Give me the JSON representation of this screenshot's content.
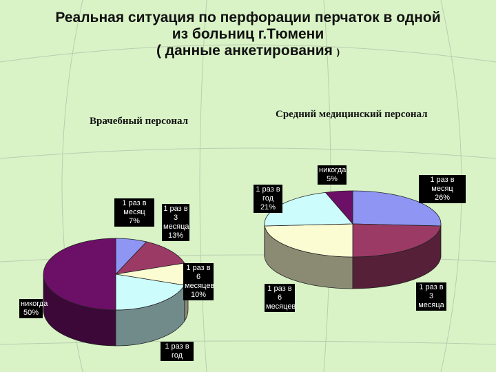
{
  "title": {
    "line1": "Реальная ситуация по перфорации перчаток в одной",
    "line2": "из больниц г.Тюмени",
    "line3": "( данные анкетирования",
    "line3_end": ")"
  },
  "colors": {
    "background": "#d9f3c6",
    "grid_lines": "#b9cdb0"
  },
  "chart_data": [
    {
      "type": "pie",
      "title": "Врачебный персонал",
      "slices": [
        {
          "label": "1 раз в месяц",
          "value": 7,
          "value_label": "7%",
          "color": "#8e95f2"
        },
        {
          "label": "1 раз в 3 месяца",
          "value": 13,
          "value_label": "13%",
          "color": "#9c3a66"
        },
        {
          "label": "1 раз в 6 месяцев",
          "value": 10,
          "value_label": "10%",
          "color": "#fcfcd2"
        },
        {
          "label": "1 раз в год",
          "value": 20,
          "value_label": "",
          "color": "#cdfcfd"
        },
        {
          "label": "никогда",
          "value": 50,
          "value_label": "50%",
          "color": "#6c0f66"
        }
      ]
    },
    {
      "type": "pie",
      "title": "Средний медицинский персонал",
      "slices": [
        {
          "label": "1 раз в месяц",
          "value": 26,
          "value_label": "26%",
          "color": "#8e95f2"
        },
        {
          "label": "1 раз в 3 месяца",
          "value": 24,
          "value_label": "",
          "color": "#9c3a66"
        },
        {
          "label": "1 раз в 6 месяцев",
          "value": 24,
          "value_label": "",
          "color": "#fcfcd2"
        },
        {
          "label": "1 раз в год",
          "value": 21,
          "value_label": "21%",
          "color": "#cdfcfd"
        },
        {
          "label": "никогда",
          "value": 5,
          "value_label": "5%",
          "color": "#6c0f66"
        }
      ]
    }
  ]
}
